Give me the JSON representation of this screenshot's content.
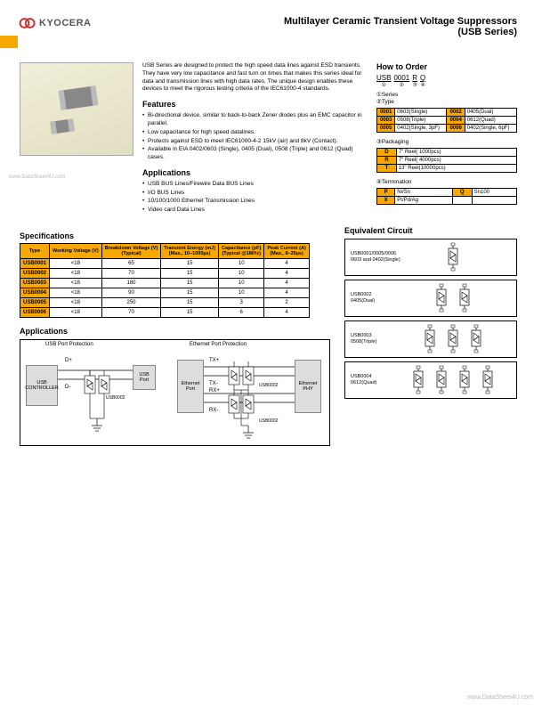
{
  "brand": "KYOCERA",
  "title_line1": "Multilayer Ceramic Transient Voltage Suppressors",
  "title_line2": "(USB Series)",
  "watermark": "www.DataSheet4U.com",
  "intro": "USB Series are designed to protect the high speed data lines against ESD transients. They have very low capacitance and fast turn on times that makes this series ideal for data and transmission lines with high data rates. The unique design enables these devices to meet the rigorous testing criteria of the IEC61000-4 standards.",
  "features_h": "Features",
  "features": [
    "Bi-directional device, similar to back-to-back Zener diodes plus an EMC capacitor in parallel.",
    "Low capacitance for high speed datalines.",
    "Protects against ESD to meet IEC61000-4-2 15kV (air) and 8kV (Contact).",
    "Available in EIA 0402/0603 (Single), 0405 (Dual), 0508 (Triple) and 0612 (Quad) cases."
  ],
  "apps_h": "Applications",
  "apps": [
    "USB BUS Lines/Firewire Data BUS Lines",
    "I/O BUS Lines",
    "10/100/1000 Ethernet Transmission Lines",
    "Video card Data Lines"
  ],
  "order": {
    "h": "How to Order",
    "parts": [
      {
        "txt": "USB",
        "n": "①"
      },
      {
        "txt": "0001",
        "n": "②"
      },
      {
        "txt": "R",
        "n": "③"
      },
      {
        "txt": "Q",
        "n": "④"
      }
    ],
    "lbl_series": "①Series",
    "lbl_type": "②Type",
    "types": [
      [
        "0001",
        "0603(Single)",
        "0002",
        "0405(Dual)"
      ],
      [
        "0003",
        "0508(Triple)",
        "0004",
        "0612(Quad)"
      ],
      [
        "0005",
        "0402(Single, 3pF)",
        "0006",
        "0402(Single, 6pF)"
      ]
    ],
    "lbl_pkg": "③Packaging",
    "pkg": [
      [
        "D",
        "7\" Reel( 1000pcs)"
      ],
      [
        "R",
        "7\" Reel( 4000pcs)"
      ],
      [
        "T",
        "13\" Reel(10000pcs)"
      ]
    ],
    "lbl_term": "④Termination",
    "term": [
      [
        "P",
        "Ni/Sn",
        "Q",
        "Sn100"
      ],
      [
        "X",
        "Pt/Pd/Ag",
        "",
        ""
      ]
    ]
  },
  "specs_h": "Specifications",
  "spec_headers": [
    "Type",
    "Working Voltage (V)",
    "Breakdown Voltage (V)\n(Typical)",
    "Transient Energy (mJ)\n(Max., 10–1000µs)",
    "Capacitance (pF)\n(Typical @1MHz)",
    "Peak Current (A)\n(Max., 8–20µs)"
  ],
  "spec_rows": [
    [
      "USB0001",
      "<18",
      "65",
      "15",
      "10",
      "4"
    ],
    [
      "USB0002",
      "<18",
      "70",
      "15",
      "10",
      "4"
    ],
    [
      "USB0003",
      "<18",
      "180",
      "15",
      "10",
      "4"
    ],
    [
      "USB0004",
      "<18",
      "90",
      "15",
      "10",
      "4"
    ],
    [
      "USB0005",
      "<18",
      "250",
      "15",
      "3",
      "2"
    ],
    [
      "USB0006",
      "<18",
      "70",
      "15",
      "6",
      "4"
    ]
  ],
  "apps2_h": "Applications",
  "usb_label": "USB Port Protection",
  "eth_label": "Ethernet Port Protection",
  "usb_ctrl": "USB CONTROLLER",
  "usb_port": "USB Port",
  "eth_port": "Ethernet Port",
  "eth_phy": "Ethernet PHY",
  "dplus": "D+",
  "dminus": "D-",
  "txp": "TX+",
  "txm": "TX-",
  "rxp": "RX+",
  "rxm": "RX-",
  "usb0002": "USB0002",
  "equiv_h": "Equivalent Circuit",
  "eq_labels": [
    "USB0001/0005/0006\n0603 and 0402(Single)",
    "USB0002\n0405(Dual)",
    "USB0003\n0508(Triple)",
    "USB0004\n0612(Quad)"
  ],
  "colors": {
    "accent": "#f6a800",
    "border": "#000000",
    "bg": "#ffffff",
    "gray": "#dddddd"
  }
}
